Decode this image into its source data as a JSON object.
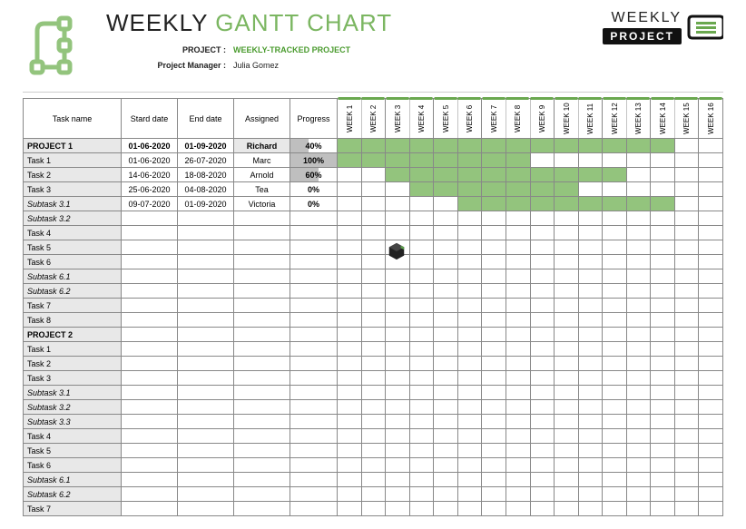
{
  "title": {
    "part1": "WEEKLY",
    "part2": "GANTT CHART"
  },
  "meta": {
    "project_label": "PROJECT :",
    "project_value": "WEEKLY-TRACKED PROJECT",
    "manager_label": "Project Manager :",
    "manager_value": "Julia Gomez"
  },
  "right_logo": {
    "top": "WEEKLY",
    "bottom": "PROJECT"
  },
  "headers": {
    "task": "Task name",
    "start": "Stard date",
    "end": "End date",
    "assigned": "Assigned",
    "progress": "Progress"
  },
  "weeks": [
    "WEEK 1",
    "WEEK 2",
    "WEEK 3",
    "WEEK 4",
    "WEEK 5",
    "WEEK 6",
    "WEEK 7",
    "WEEK 8",
    "WEEK 9",
    "WEEK 10",
    "WEEK 11",
    "WEEK 12",
    "WEEK 13",
    "WEEK 14",
    "WEEK 15",
    "WEEK 16"
  ],
  "colors": {
    "header_accent": "#6aa84f",
    "gantt_fill": "#93c47d",
    "row_alt": "#e8e8e8",
    "progress_bar": "#bfbfbf",
    "title_green": "#7bb661"
  },
  "rows": [
    {
      "name": "PROJECT 1",
      "start": "01-06-2020",
      "end": "01-09-2020",
      "assigned": "Richard",
      "progress": 40,
      "bold": true,
      "italic": false,
      "bar": [
        1,
        14
      ]
    },
    {
      "name": "Task 1",
      "start": "01-06-2020",
      "end": "26-07-2020",
      "assigned": "Marc",
      "progress": 100,
      "bold": false,
      "italic": false,
      "bar": [
        1,
        8
      ]
    },
    {
      "name": "Task 2",
      "start": "14-06-2020",
      "end": "18-08-2020",
      "assigned": "Arnold",
      "progress": 60,
      "bold": false,
      "italic": false,
      "bar": [
        3,
        12
      ]
    },
    {
      "name": "Task 3",
      "start": "25-06-2020",
      "end": "04-08-2020",
      "assigned": "Tea",
      "progress": 0,
      "bold": false,
      "italic": false,
      "bar": [
        4,
        10
      ]
    },
    {
      "name": "Subtask 3.1",
      "start": "09-07-2020",
      "end": "01-09-2020",
      "assigned": "Victoria",
      "progress": 0,
      "bold": false,
      "italic": true,
      "bar": [
        6,
        14
      ]
    },
    {
      "name": "Subtask 3.2",
      "italic": true
    },
    {
      "name": "Task 4"
    },
    {
      "name": "Task 5"
    },
    {
      "name": "Task 6"
    },
    {
      "name": "Subtask 6.1",
      "italic": true
    },
    {
      "name": "Subtask 6.2",
      "italic": true
    },
    {
      "name": "Task 7"
    },
    {
      "name": "Task 8"
    },
    {
      "name": "PROJECT 2",
      "bold": true
    },
    {
      "name": "Task 1"
    },
    {
      "name": "Task 2"
    },
    {
      "name": "Task 3"
    },
    {
      "name": "Subtask 3.1",
      "italic": true
    },
    {
      "name": "Subtask 3.2",
      "italic": true
    },
    {
      "name": "Subtask 3.3",
      "italic": true
    },
    {
      "name": "Task 4"
    },
    {
      "name": "Task 5"
    },
    {
      "name": "Task 6"
    },
    {
      "name": "Subtask 6.1",
      "italic": true
    },
    {
      "name": "Subtask 6.2",
      "italic": true
    },
    {
      "name": "Task 7"
    }
  ]
}
